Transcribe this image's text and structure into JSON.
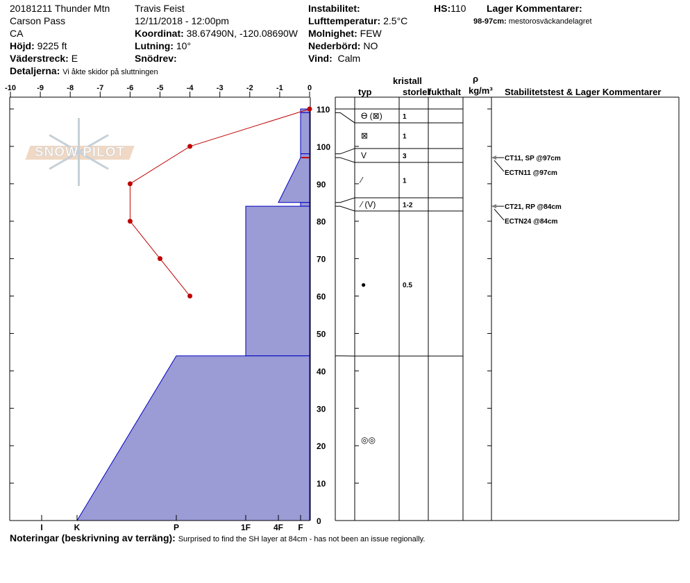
{
  "header": {
    "title": "20181211 Thunder Mtn",
    "location": "Carson Pass",
    "state": "CA",
    "elevation_label": "Höjd:",
    "elevation": "9225 ft",
    "aspect_label": "Väderstreck:",
    "aspect": "E",
    "details_label": "Detaljerna:",
    "details": "Vi åkte skidor på sluttningen",
    "observer": "Travis Feist",
    "datetime": "12/11/2018 - 12:00pm",
    "coord_label": "Koordinat:",
    "coord": "38.67490N, -120.08690W",
    "slope_label": "Lutning:",
    "slope": "10°",
    "drift_label": "Snödrev:",
    "drift": "",
    "instability_label": "Instabilitet:",
    "instability": "",
    "airtemp_label": "Lufttemperatur:",
    "airtemp": "2.5°C",
    "sky_label": "Molnighet:",
    "sky": "FEW",
    "precip_label": "Nederbörd:",
    "precip": "NO",
    "wind_label": "Vind:",
    "wind": "Calm",
    "hs_label": "HS:",
    "hs": "110",
    "layer_comments_label": "Lager Kommentarer:",
    "layer_comment_range": "98-97cm:",
    "layer_comment": "mestorosväckandelagret"
  },
  "table_header": {
    "crystal": "kristall",
    "type": "typ",
    "size": "storlek",
    "moisture": "fukthalt",
    "rho": "ρ",
    "density_unit": "kg/m³",
    "stability": "Stabilitetstest & Lager Kommentarer"
  },
  "notes": {
    "label": "Noteringar (beskrivning av terräng):",
    "text": "Surprised to find the SH layer at 84cm - has not been an issue regionally."
  },
  "logo_text": "SNOW PILOT",
  "colors": {
    "hardness_fill": "#9b9bd6",
    "hardness_stroke": "#0000c0",
    "temp_line": "#c00000",
    "axis": "#000000",
    "test_arrow": "#808080"
  },
  "chart_data": {
    "type": "line",
    "temp_axis": {
      "ticks": [
        -10,
        -9,
        -8,
        -7,
        -6,
        -5,
        -4,
        -3,
        -2,
        -1,
        0
      ],
      "range": [
        -10,
        0
      ]
    },
    "height_axis": {
      "ticks": [
        0,
        10,
        20,
        30,
        40,
        50,
        60,
        70,
        80,
        90,
        100,
        110
      ],
      "range": [
        0,
        113
      ]
    },
    "hardness_axis": {
      "ticks": [
        "I",
        "K",
        "P",
        "1F",
        "4F",
        "F"
      ]
    },
    "temperature_profile": [
      {
        "height": 110,
        "temp": 0
      },
      {
        "height": 100,
        "temp": -4
      },
      {
        "height": 90,
        "temp": -6
      },
      {
        "height": 80,
        "temp": -6
      },
      {
        "height": 70,
        "temp": -5
      },
      {
        "height": 60,
        "temp": -4
      }
    ],
    "layers": [
      {
        "top": 110,
        "bottom": 109,
        "hardness_top": "F",
        "hardness_bottom": "F",
        "grain": "ϴ (⊠)",
        "size": "1"
      },
      {
        "top": 109,
        "bottom": 98,
        "hardness_top": "F",
        "hardness_bottom": "F",
        "grain": "⊠",
        "size": "1"
      },
      {
        "top": 98,
        "bottom": 97,
        "hardness_top": "F",
        "hardness_bottom": "F",
        "grain": "V",
        "size": "3"
      },
      {
        "top": 97,
        "bottom": 85,
        "hardness_top": "F",
        "hardness_bottom": "4F",
        "grain": "⁄",
        "size": "1"
      },
      {
        "top": 85,
        "bottom": 84,
        "hardness_top": "F",
        "hardness_bottom": "F",
        "grain": "⁄ (V)",
        "size": "1-2"
      },
      {
        "top": 84,
        "bottom": 44,
        "hardness_top": "1F",
        "hardness_bottom": "1F",
        "grain": "●",
        "size": "0.5"
      },
      {
        "top": 44,
        "bottom": 0,
        "hardness_top": "P",
        "hardness_bottom": "K",
        "grain": "◎◎",
        "size": ""
      }
    ],
    "highlight_layer_height": 97,
    "stability_tests": [
      {
        "text": "CT11, SP @97cm",
        "height": 97
      },
      {
        "text": "ECTN11 @97cm",
        "height": 97
      },
      {
        "text": "CT21, RP @84cm",
        "height": 84
      },
      {
        "text": "ECTN24 @84cm",
        "height": 84
      }
    ]
  }
}
